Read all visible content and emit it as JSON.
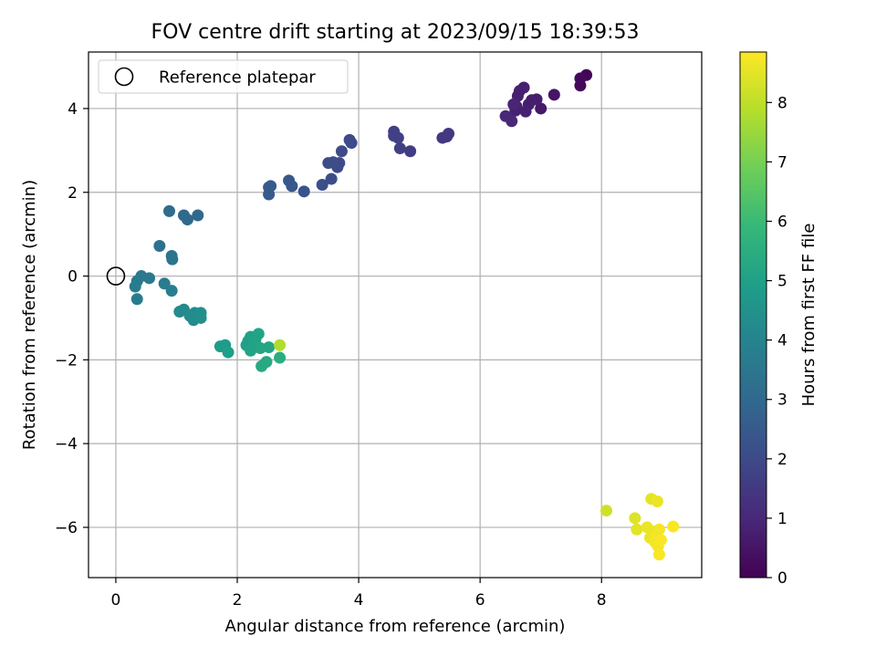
{
  "chart_data": {
    "type": "scatter",
    "title": "FOV centre drift starting at 2023/09/15 18:39:53",
    "xlabel": "Angular distance from reference (arcmin)",
    "ylabel": "Rotation from reference (arcmin)",
    "xlim": [
      -0.45,
      9.65
    ],
    "ylim": [
      -7.2,
      5.35
    ],
    "xticks": [
      0,
      2,
      4,
      6,
      8
    ],
    "xtick_labels": [
      "0",
      "2",
      "4",
      "6",
      "8"
    ],
    "yticks": [
      4,
      2,
      0,
      -2,
      -4,
      -6
    ],
    "ytick_labels": [
      "4",
      "2",
      "0",
      "−2",
      "−4",
      "−6"
    ],
    "grid": true,
    "legend": {
      "placement": "upper-left",
      "entries": [
        "Reference platepar"
      ]
    },
    "reference_point": {
      "name": "Reference platepar",
      "x": 0,
      "y": 0
    },
    "colorbar": {
      "label": "Hours from first FF file",
      "min": 0,
      "max": 8.85,
      "ticks": [
        0,
        1,
        2,
        3,
        4,
        5,
        6,
        7,
        8
      ],
      "tick_labels": [
        "0",
        "1",
        "2",
        "3",
        "4",
        "5",
        "6",
        "7",
        "8"
      ],
      "colormap": "viridis",
      "colormap_stops": [
        "#440154",
        "#482878",
        "#3e4989",
        "#31688e",
        "#26828e",
        "#1f9e89",
        "#35b779",
        "#6ece58",
        "#b5de2b",
        "#fde725"
      ]
    },
    "series": [
      {
        "color_value_unit": "hours",
        "points": [
          {
            "x": 7.75,
            "y": 4.8,
            "c": 0.1
          },
          {
            "x": 7.65,
            "y": 4.72,
            "c": 0.2
          },
          {
            "x": 7.65,
            "y": 4.55,
            "c": 0.2
          },
          {
            "x": 7.22,
            "y": 4.33,
            "c": 0.5
          },
          {
            "x": 7.0,
            "y": 4.0,
            "c": 0.6
          },
          {
            "x": 6.93,
            "y": 4.22,
            "c": 0.7
          },
          {
            "x": 6.85,
            "y": 4.2,
            "c": 0.7
          },
          {
            "x": 6.8,
            "y": 4.1,
            "c": 0.7
          },
          {
            "x": 6.75,
            "y": 3.93,
            "c": 0.8
          },
          {
            "x": 6.72,
            "y": 4.5,
            "c": 0.8
          },
          {
            "x": 6.65,
            "y": 4.42,
            "c": 0.8
          },
          {
            "x": 6.62,
            "y": 4.3,
            "c": 0.8
          },
          {
            "x": 6.6,
            "y": 4.05,
            "c": 0.8
          },
          {
            "x": 6.58,
            "y": 3.95,
            "c": 0.8
          },
          {
            "x": 6.55,
            "y": 4.1,
            "c": 0.9
          },
          {
            "x": 6.52,
            "y": 3.7,
            "c": 1.0
          },
          {
            "x": 6.42,
            "y": 3.82,
            "c": 1.0
          },
          {
            "x": 5.48,
            "y": 3.4,
            "c": 1.5
          },
          {
            "x": 5.45,
            "y": 3.33,
            "c": 1.5
          },
          {
            "x": 5.38,
            "y": 3.3,
            "c": 1.5
          },
          {
            "x": 4.85,
            "y": 2.98,
            "c": 1.6
          },
          {
            "x": 4.68,
            "y": 3.05,
            "c": 1.7
          },
          {
            "x": 4.65,
            "y": 3.3,
            "c": 1.7
          },
          {
            "x": 4.58,
            "y": 3.45,
            "c": 1.7
          },
          {
            "x": 4.58,
            "y": 3.35,
            "c": 1.7
          },
          {
            "x": 3.88,
            "y": 3.18,
            "c": 2.0
          },
          {
            "x": 3.85,
            "y": 3.25,
            "c": 2.0
          },
          {
            "x": 3.72,
            "y": 2.98,
            "c": 2.0
          },
          {
            "x": 3.68,
            "y": 2.7,
            "c": 2.0
          },
          {
            "x": 3.65,
            "y": 2.6,
            "c": 2.0
          },
          {
            "x": 3.58,
            "y": 2.72,
            "c": 2.1
          },
          {
            "x": 3.55,
            "y": 2.32,
            "c": 2.1
          },
          {
            "x": 3.5,
            "y": 2.7,
            "c": 2.1
          },
          {
            "x": 3.4,
            "y": 2.18,
            "c": 2.2
          },
          {
            "x": 3.1,
            "y": 2.02,
            "c": 2.3
          },
          {
            "x": 2.9,
            "y": 2.15,
            "c": 2.4
          },
          {
            "x": 2.85,
            "y": 2.28,
            "c": 2.4
          },
          {
            "x": 2.55,
            "y": 2.15,
            "c": 2.5
          },
          {
            "x": 2.52,
            "y": 2.12,
            "c": 2.5
          },
          {
            "x": 2.52,
            "y": 1.95,
            "c": 2.5
          },
          {
            "x": 1.35,
            "y": 1.45,
            "c": 3.0
          },
          {
            "x": 1.18,
            "y": 1.35,
            "c": 3.0
          },
          {
            "x": 1.12,
            "y": 1.45,
            "c": 3.0
          },
          {
            "x": 0.88,
            "y": 1.55,
            "c": 3.1
          },
          {
            "x": 0.92,
            "y": 0.48,
            "c": 3.4
          },
          {
            "x": 0.93,
            "y": 0.4,
            "c": 3.4
          },
          {
            "x": 0.72,
            "y": 0.72,
            "c": 3.3
          },
          {
            "x": 0.55,
            "y": -0.05,
            "c": 3.6
          },
          {
            "x": 0.42,
            "y": 0.0,
            "c": 3.6
          },
          {
            "x": 0.35,
            "y": -0.12,
            "c": 3.6
          },
          {
            "x": 0.32,
            "y": -0.25,
            "c": 3.7
          },
          {
            "x": 0.35,
            "y": -0.55,
            "c": 3.7
          },
          {
            "x": 0.8,
            "y": -0.18,
            "c": 3.7
          },
          {
            "x": 0.92,
            "y": -0.35,
            "c": 3.8
          },
          {
            "x": 1.05,
            "y": -0.85,
            "c": 4.2
          },
          {
            "x": 1.12,
            "y": -0.8,
            "c": 4.2
          },
          {
            "x": 1.22,
            "y": -0.95,
            "c": 4.3
          },
          {
            "x": 1.28,
            "y": -1.05,
            "c": 4.3
          },
          {
            "x": 1.3,
            "y": -0.88,
            "c": 4.3
          },
          {
            "x": 1.35,
            "y": -0.95,
            "c": 4.3
          },
          {
            "x": 1.4,
            "y": -0.88,
            "c": 4.4
          },
          {
            "x": 1.4,
            "y": -1.0,
            "c": 4.4
          },
          {
            "x": 1.72,
            "y": -1.68,
            "c": 4.8
          },
          {
            "x": 1.8,
            "y": -1.65,
            "c": 4.8
          },
          {
            "x": 1.85,
            "y": -1.82,
            "c": 4.9
          },
          {
            "x": 2.15,
            "y": -1.65,
            "c": 5.0
          },
          {
            "x": 2.18,
            "y": -1.55,
            "c": 5.0
          },
          {
            "x": 2.22,
            "y": -1.45,
            "c": 5.0
          },
          {
            "x": 2.22,
            "y": -1.78,
            "c": 5.1
          },
          {
            "x": 2.28,
            "y": -1.6,
            "c": 5.1
          },
          {
            "x": 2.3,
            "y": -1.52,
            "c": 5.1
          },
          {
            "x": 2.35,
            "y": -1.38,
            "c": 5.1
          },
          {
            "x": 2.38,
            "y": -1.72,
            "c": 5.2
          },
          {
            "x": 2.4,
            "y": -2.15,
            "c": 5.3
          },
          {
            "x": 2.48,
            "y": -2.05,
            "c": 5.3
          },
          {
            "x": 2.52,
            "y": -1.7,
            "c": 5.2
          },
          {
            "x": 2.7,
            "y": -1.95,
            "c": 5.5
          },
          {
            "x": 2.7,
            "y": -1.65,
            "c": 7.8
          },
          {
            "x": 8.08,
            "y": -5.6,
            "c": 8.2
          },
          {
            "x": 8.55,
            "y": -5.78,
            "c": 8.4
          },
          {
            "x": 8.58,
            "y": -6.05,
            "c": 8.5
          },
          {
            "x": 8.75,
            "y": -6.0,
            "c": 8.6
          },
          {
            "x": 8.8,
            "y": -6.25,
            "c": 8.6
          },
          {
            "x": 8.82,
            "y": -5.32,
            "c": 8.5
          },
          {
            "x": 8.85,
            "y": -6.1,
            "c": 8.6
          },
          {
            "x": 8.88,
            "y": -6.35,
            "c": 8.7
          },
          {
            "x": 8.9,
            "y": -6.18,
            "c": 8.7
          },
          {
            "x": 8.92,
            "y": -5.38,
            "c": 8.6
          },
          {
            "x": 8.93,
            "y": -6.45,
            "c": 8.7
          },
          {
            "x": 8.95,
            "y": -6.05,
            "c": 8.7
          },
          {
            "x": 8.95,
            "y": -6.65,
            "c": 8.8
          },
          {
            "x": 8.98,
            "y": -6.3,
            "c": 8.8
          },
          {
            "x": 9.18,
            "y": -5.98,
            "c": 8.8
          }
        ]
      }
    ]
  }
}
